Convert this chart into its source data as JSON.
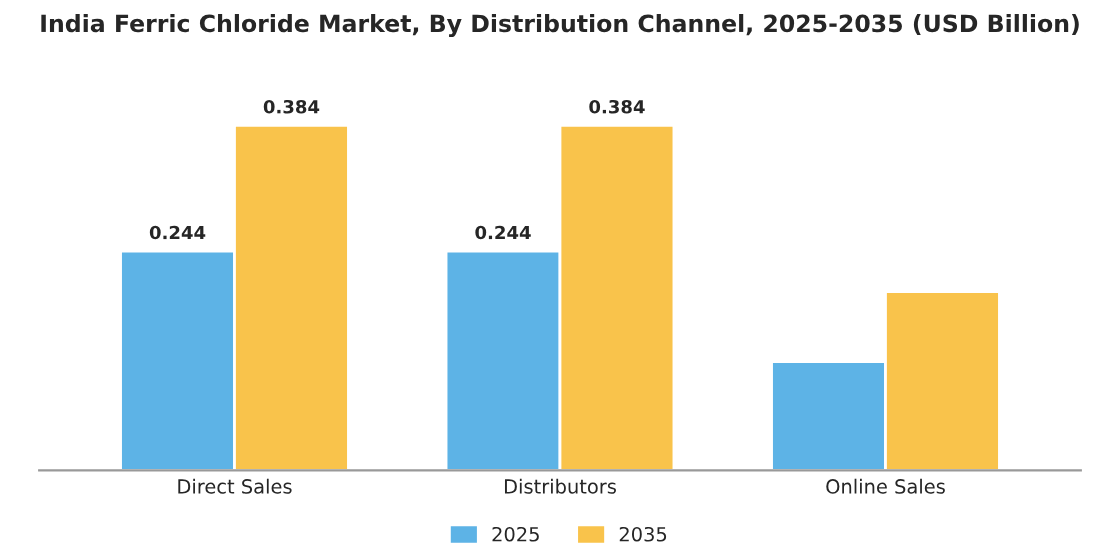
{
  "chart_data": {
    "type": "bar",
    "title": "India Ferric Chloride Market, By Distribution Channel, 2025-2035 (USD Billion)",
    "categories": [
      "Direct Sales",
      "Distributors",
      "Online Sales"
    ],
    "series": [
      {
        "name": "2025",
        "color": "#5db3e6",
        "values": [
          0.244,
          0.244,
          0.121
        ],
        "value_labels": [
          "0.244",
          "0.244",
          null
        ]
      },
      {
        "name": "2035",
        "color": "#f9c34b",
        "values": [
          0.384,
          0.384,
          0.199
        ],
        "value_labels": [
          "0.384",
          "0.384",
          null
        ]
      }
    ],
    "legend": "bottom",
    "grid": false
  }
}
